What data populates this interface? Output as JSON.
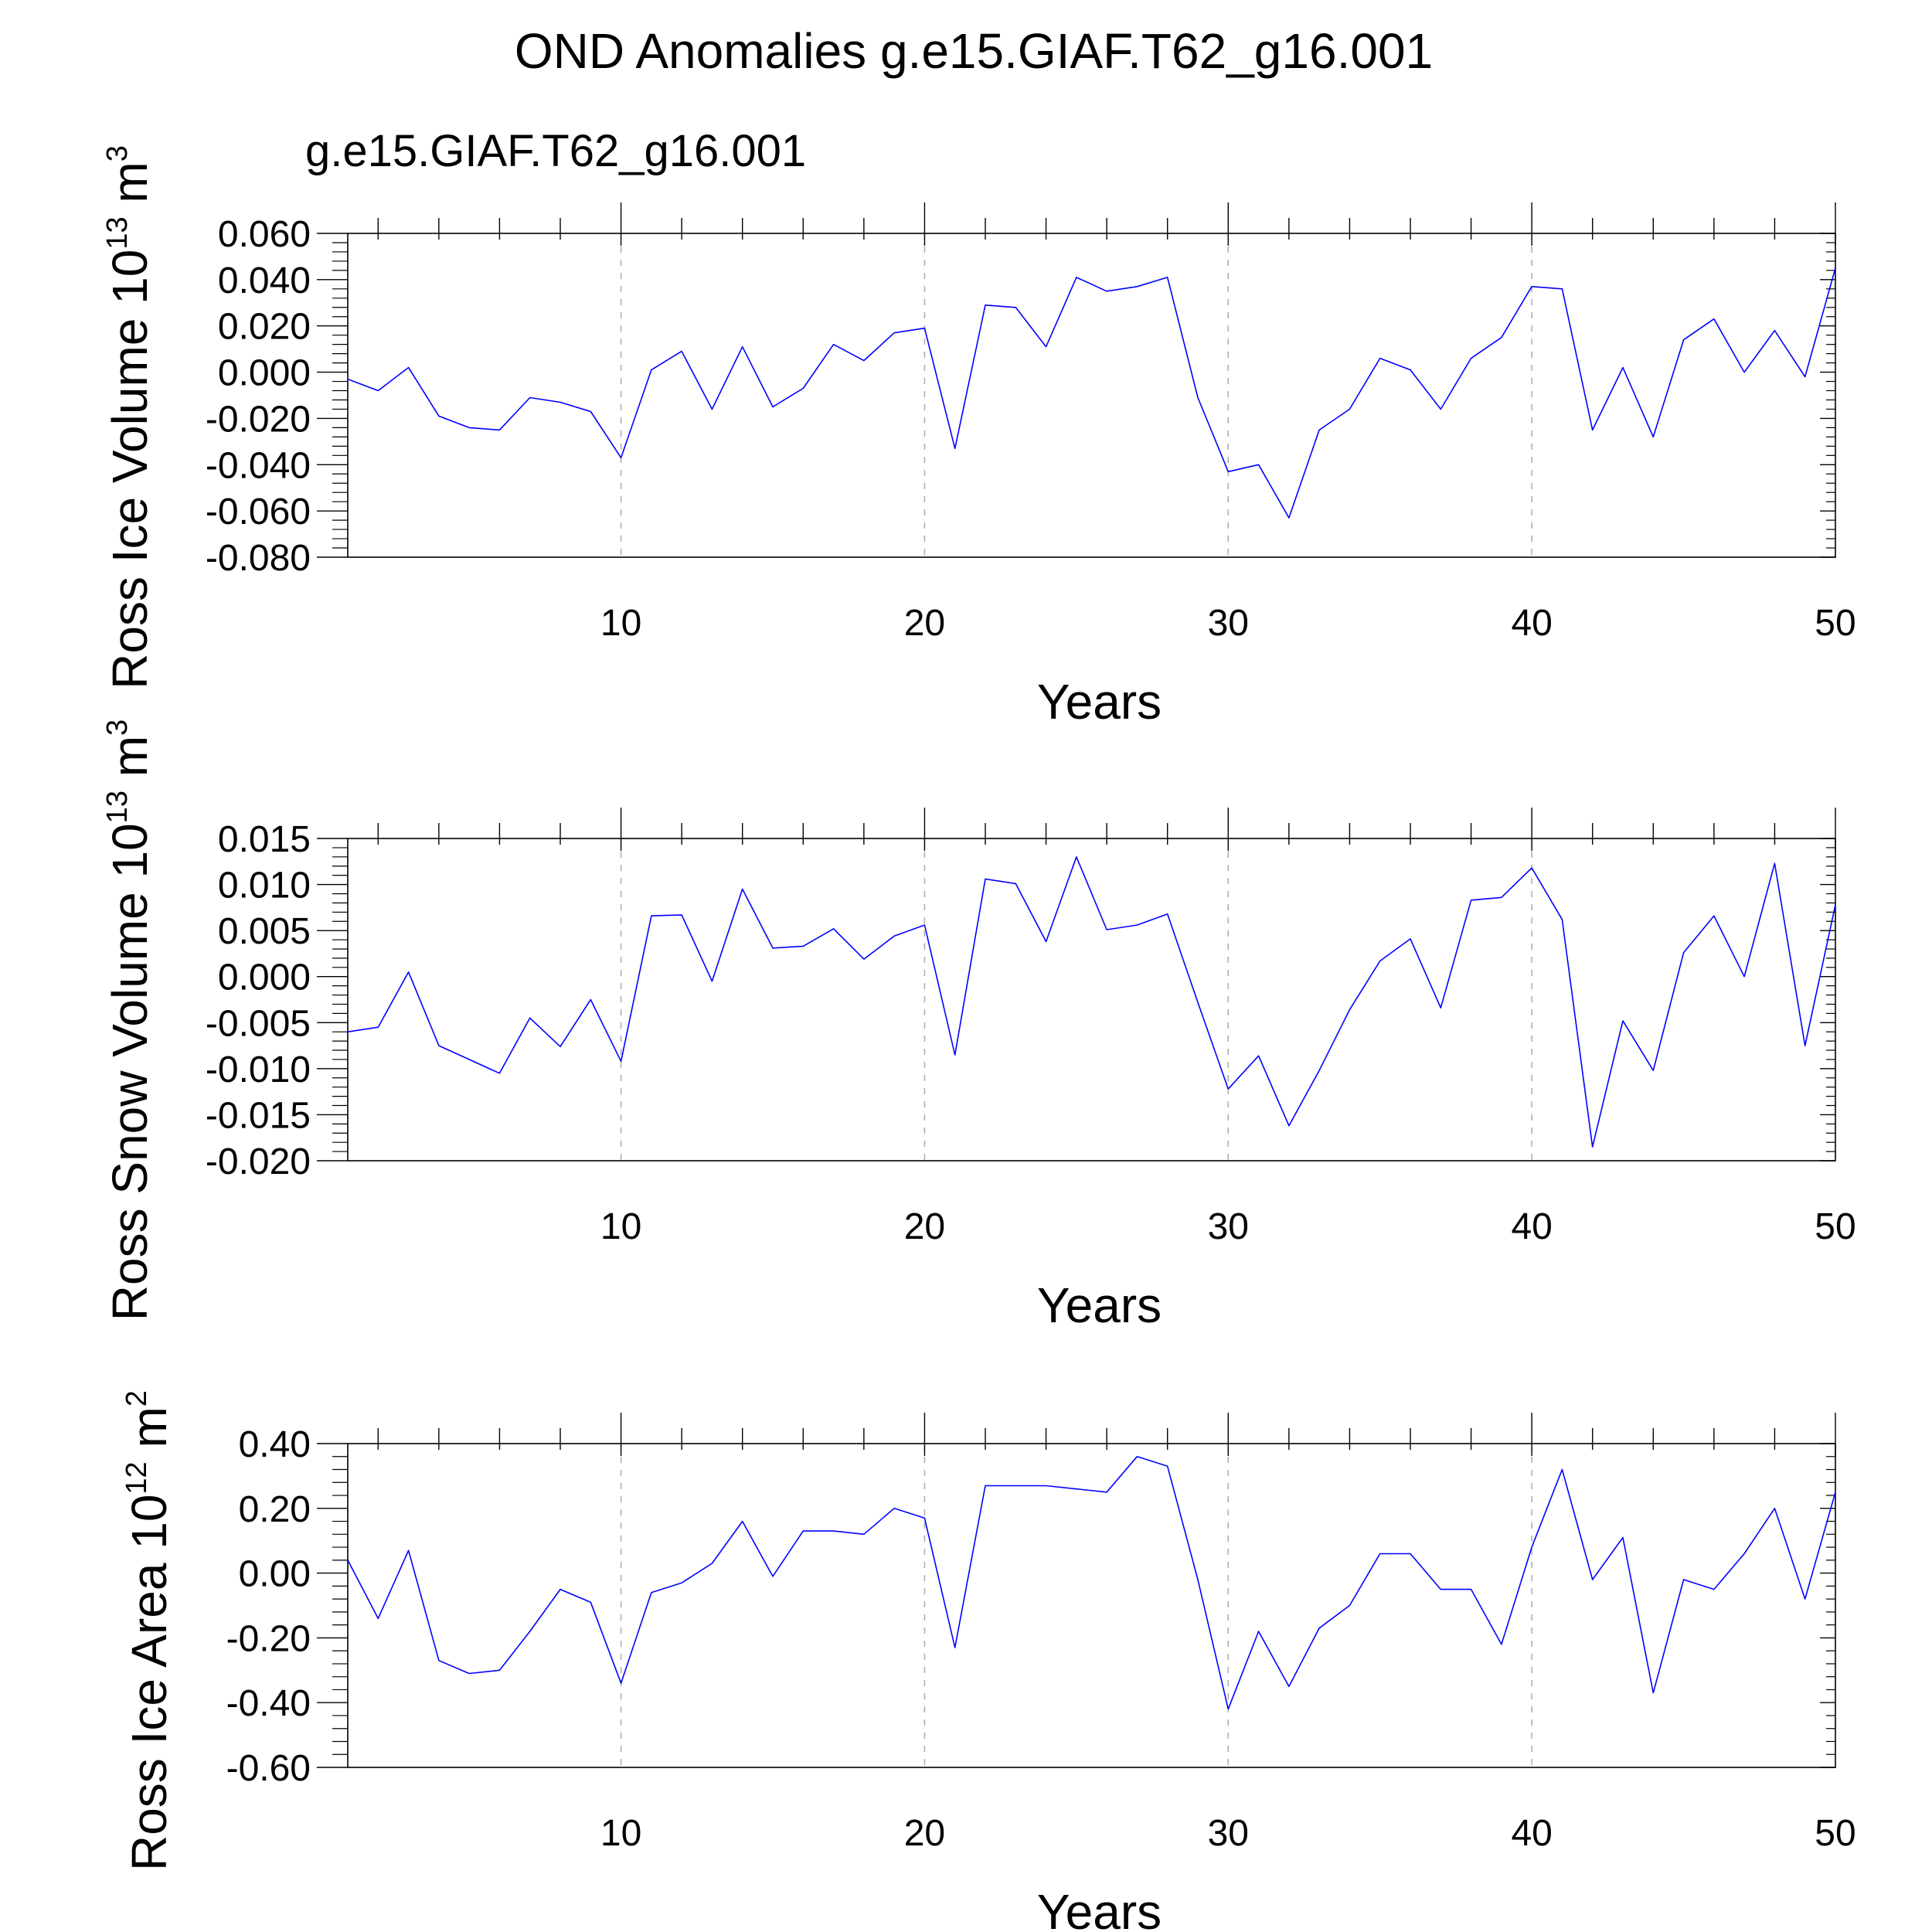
{
  "title": "OND Anomalies g.e15.GIAF.T62_g16.001",
  "legend_label": "g.e15.GIAF.T62_g16.001",
  "colors": {
    "series": "#0000ff",
    "legend": "#0000ff",
    "grid": "#aaaaaa",
    "axis": "#000000"
  },
  "chart_data": [
    {
      "type": "line",
      "ylabel": "Ross Ice Volume",
      "ylabel_unit_base": "10",
      "ylabel_unit_exp": "13",
      "ylabel_unit_dim": "m",
      "ylabel_unit_dim_exp": "3",
      "xlabel": "Years",
      "xlim": [
        1,
        50
      ],
      "ylim": [
        -0.08,
        0.06
      ],
      "x_ticks": [
        "10",
        "20",
        "30",
        "40",
        "50"
      ],
      "y_ticks": [
        "0.060",
        "0.040",
        "0.020",
        "0.000",
        "-0.020",
        "-0.040",
        "-0.060",
        "-0.080"
      ],
      "grid": "vertical dashed at 10, 20, 30, 40",
      "series": [
        {
          "name": "g.e15.GIAF.T62_g16.001",
          "x": [
            1,
            2,
            3,
            4,
            5,
            6,
            7,
            8,
            9,
            10,
            11,
            12,
            13,
            14,
            15,
            16,
            17,
            18,
            19,
            20,
            21,
            22,
            23,
            24,
            25,
            26,
            27,
            28,
            29,
            30,
            31,
            32,
            33,
            34,
            35,
            36,
            37,
            38,
            39,
            40,
            41,
            42,
            43,
            44,
            45,
            46,
            47,
            48,
            49,
            50
          ],
          "values": [
            -0.003,
            -0.008,
            0.002,
            -0.019,
            -0.024,
            -0.025,
            -0.011,
            -0.013,
            -0.017,
            -0.037,
            0.001,
            0.009,
            -0.016,
            0.011,
            -0.015,
            -0.007,
            0.012,
            0.005,
            0.017,
            0.019,
            -0.033,
            0.029,
            0.028,
            0.011,
            0.041,
            0.035,
            0.037,
            0.041,
            -0.011,
            -0.043,
            -0.04,
            -0.063,
            -0.025,
            -0.016,
            0.006,
            0.001,
            -0.016,
            0.006,
            0.015,
            0.037,
            0.036,
            -0.025,
            0.002,
            -0.028,
            0.014,
            0.023,
            0.0,
            0.018,
            -0.002,
            0.045
          ]
        }
      ]
    },
    {
      "type": "line",
      "ylabel": "Ross Snow Volume",
      "ylabel_unit_base": "10",
      "ylabel_unit_exp": "13",
      "ylabel_unit_dim": "m",
      "ylabel_unit_dim_exp": "3",
      "xlabel": "Years",
      "xlim": [
        1,
        50
      ],
      "ylim": [
        -0.02,
        0.015
      ],
      "x_ticks": [
        "10",
        "20",
        "30",
        "40",
        "50"
      ],
      "y_ticks": [
        "0.015",
        "0.010",
        "0.005",
        "0.000",
        "-0.005",
        "-0.010",
        "-0.015",
        "-0.020"
      ],
      "grid": "vertical dashed at 10, 20, 30, 40",
      "series": [
        {
          "name": "g.e15.GIAF.T62_g16.001",
          "x": [
            1,
            2,
            3,
            4,
            5,
            6,
            7,
            8,
            9,
            10,
            11,
            12,
            13,
            14,
            15,
            16,
            17,
            18,
            19,
            20,
            21,
            22,
            23,
            24,
            25,
            26,
            27,
            28,
            29,
            30,
            31,
            32,
            33,
            34,
            35,
            36,
            37,
            38,
            39,
            40,
            41,
            42,
            43,
            44,
            45,
            46,
            47,
            48,
            49,
            50
          ],
          "values": [
            -0.006,
            -0.0055,
            0.0005,
            -0.0075,
            -0.009,
            -0.0105,
            -0.0045,
            -0.0076,
            -0.0025,
            -0.0092,
            0.0066,
            0.0067,
            -0.0005,
            0.0095,
            0.0031,
            0.0033,
            0.0052,
            0.0019,
            0.0044,
            0.0056,
            -0.0085,
            0.0106,
            0.0101,
            0.0038,
            0.013,
            0.0051,
            0.0056,
            0.0068,
            -0.0028,
            -0.0122,
            -0.0086,
            -0.0162,
            -0.0102,
            -0.0036,
            0.0017,
            0.0041,
            -0.0034,
            0.0083,
            0.0086,
            0.0118,
            0.0062,
            -0.0185,
            -0.0048,
            -0.0102,
            0.0026,
            0.0066,
            0.0,
            0.0123,
            -0.0075,
            0.0078
          ]
        }
      ]
    },
    {
      "type": "line",
      "ylabel": "Ross Ice Area",
      "ylabel_unit_base": "10",
      "ylabel_unit_exp": "12",
      "ylabel_unit_dim": "m",
      "ylabel_unit_dim_exp": "2",
      "xlabel": "Years",
      "xlim": [
        1,
        50
      ],
      "ylim": [
        -0.6,
        0.4
      ],
      "x_ticks": [
        "10",
        "20",
        "30",
        "40",
        "50"
      ],
      "y_ticks": [
        "0.40",
        "0.20",
        "0.00",
        "-0.20",
        "-0.40",
        "-0.60"
      ],
      "grid": "vertical dashed at 10, 20, 30, 40",
      "series": [
        {
          "name": "g.e15.GIAF.T62_g16.001",
          "x": [
            1,
            2,
            3,
            4,
            5,
            6,
            7,
            8,
            9,
            10,
            11,
            12,
            13,
            14,
            15,
            16,
            17,
            18,
            19,
            20,
            21,
            22,
            23,
            24,
            25,
            26,
            27,
            28,
            29,
            30,
            31,
            32,
            33,
            34,
            35,
            36,
            37,
            38,
            39,
            40,
            41,
            42,
            43,
            44,
            45,
            46,
            47,
            48,
            49,
            50
          ],
          "values": [
            0.04,
            -0.14,
            0.07,
            -0.27,
            -0.31,
            -0.3,
            -0.18,
            -0.05,
            -0.09,
            -0.34,
            -0.06,
            -0.03,
            0.03,
            0.16,
            -0.01,
            0.13,
            0.13,
            0.12,
            0.2,
            0.17,
            -0.23,
            0.27,
            0.27,
            0.27,
            0.26,
            0.25,
            0.36,
            0.33,
            -0.02,
            -0.42,
            -0.18,
            -0.35,
            -0.17,
            -0.1,
            0.06,
            0.06,
            -0.05,
            -0.05,
            -0.22,
            0.08,
            0.32,
            -0.02,
            0.11,
            -0.37,
            -0.02,
            -0.05,
            0.06,
            0.2,
            -0.08,
            0.25
          ]
        }
      ]
    }
  ]
}
